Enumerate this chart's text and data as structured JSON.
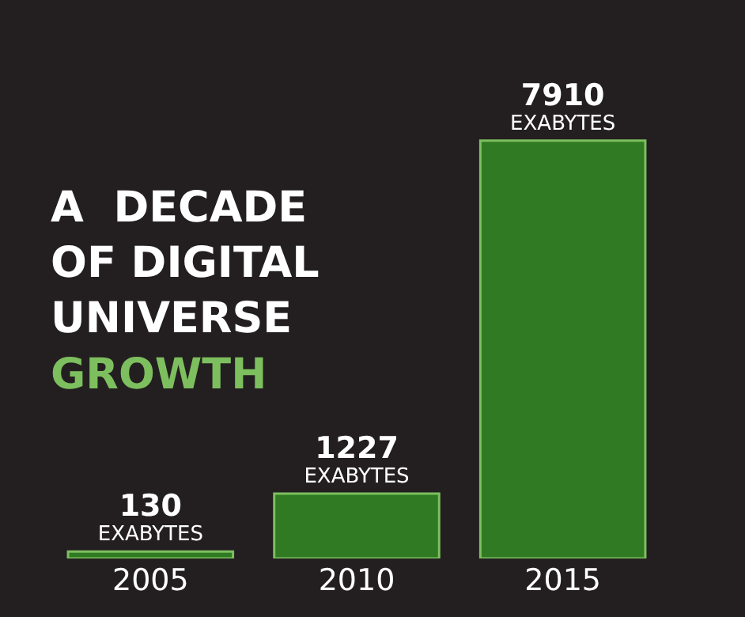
{
  "chart_data": {
    "type": "bar",
    "title": "A  DECADE\nOF DIGITAL\nUNIVERSE\nGROWTH",
    "categories": [
      "2005",
      "2010",
      "2015"
    ],
    "values": [
      130,
      1227,
      7910
    ],
    "color": "#2f7a22",
    "value_labels": [
      "130\nEXABYTES",
      "1227\nEXABYTES",
      "7910\nEXABYTES"
    ],
    "grid": false,
    "legend": false,
    "tick_labels": "x"
  }
}
